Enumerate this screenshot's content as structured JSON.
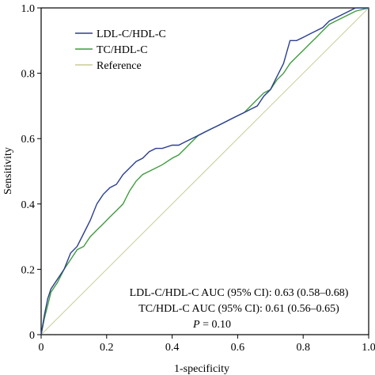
{
  "chart_data": {
    "type": "line",
    "title": "",
    "xlabel": "1-specificity",
    "ylabel": "Sensitivity",
    "xlim": [
      0,
      1
    ],
    "ylim": [
      0,
      1
    ],
    "grid": false,
    "legend_position": "top-left",
    "x_ticks": [
      "0",
      "0.2",
      "0.4",
      "0.6",
      "0.8",
      "1.0"
    ],
    "y_ticks": [
      "0",
      "0.2",
      "0.4",
      "0.6",
      "0.8",
      "1.0"
    ],
    "series": [
      {
        "name": "LDL-C/HDL-C",
        "color": "#2b3f8f",
        "points": [
          [
            0,
            0
          ],
          [
            0.01,
            0.06
          ],
          [
            0.02,
            0.11
          ],
          [
            0.03,
            0.14
          ],
          [
            0.05,
            0.17
          ],
          [
            0.07,
            0.2
          ],
          [
            0.09,
            0.25
          ],
          [
            0.11,
            0.27
          ],
          [
            0.13,
            0.31
          ],
          [
            0.15,
            0.35
          ],
          [
            0.17,
            0.4
          ],
          [
            0.19,
            0.43
          ],
          [
            0.21,
            0.45
          ],
          [
            0.23,
            0.46
          ],
          [
            0.25,
            0.49
          ],
          [
            0.27,
            0.51
          ],
          [
            0.29,
            0.53
          ],
          [
            0.31,
            0.54
          ],
          [
            0.33,
            0.56
          ],
          [
            0.35,
            0.57
          ],
          [
            0.37,
            0.57
          ],
          [
            0.4,
            0.58
          ],
          [
            0.42,
            0.58
          ],
          [
            0.44,
            0.59
          ],
          [
            0.46,
            0.6
          ],
          [
            0.48,
            0.61
          ],
          [
            0.5,
            0.62
          ],
          [
            0.52,
            0.63
          ],
          [
            0.54,
            0.64
          ],
          [
            0.56,
            0.65
          ],
          [
            0.58,
            0.66
          ],
          [
            0.6,
            0.67
          ],
          [
            0.62,
            0.68
          ],
          [
            0.64,
            0.69
          ],
          [
            0.66,
            0.7
          ],
          [
            0.68,
            0.73
          ],
          [
            0.7,
            0.75
          ],
          [
            0.72,
            0.79
          ],
          [
            0.74,
            0.83
          ],
          [
            0.76,
            0.9
          ],
          [
            0.78,
            0.9
          ],
          [
            0.8,
            0.91
          ],
          [
            0.82,
            0.92
          ],
          [
            0.84,
            0.93
          ],
          [
            0.86,
            0.94
          ],
          [
            0.88,
            0.96
          ],
          [
            0.9,
            0.97
          ],
          [
            0.92,
            0.98
          ],
          [
            0.94,
            0.99
          ],
          [
            0.96,
            1.0
          ],
          [
            1.0,
            1.0
          ]
        ]
      },
      {
        "name": "TC/HDL-C",
        "color": "#3f9c3f",
        "points": [
          [
            0,
            0
          ],
          [
            0.01,
            0.05
          ],
          [
            0.02,
            0.09
          ],
          [
            0.03,
            0.13
          ],
          [
            0.05,
            0.16
          ],
          [
            0.07,
            0.2
          ],
          [
            0.09,
            0.23
          ],
          [
            0.11,
            0.26
          ],
          [
            0.13,
            0.27
          ],
          [
            0.15,
            0.3
          ],
          [
            0.17,
            0.32
          ],
          [
            0.19,
            0.34
          ],
          [
            0.21,
            0.36
          ],
          [
            0.23,
            0.38
          ],
          [
            0.25,
            0.4
          ],
          [
            0.27,
            0.44
          ],
          [
            0.29,
            0.47
          ],
          [
            0.31,
            0.49
          ],
          [
            0.33,
            0.5
          ],
          [
            0.35,
            0.51
          ],
          [
            0.37,
            0.52
          ],
          [
            0.4,
            0.54
          ],
          [
            0.42,
            0.55
          ],
          [
            0.44,
            0.57
          ],
          [
            0.46,
            0.59
          ],
          [
            0.48,
            0.61
          ],
          [
            0.5,
            0.62
          ],
          [
            0.52,
            0.63
          ],
          [
            0.54,
            0.64
          ],
          [
            0.56,
            0.65
          ],
          [
            0.58,
            0.66
          ],
          [
            0.6,
            0.67
          ],
          [
            0.62,
            0.68
          ],
          [
            0.64,
            0.7
          ],
          [
            0.66,
            0.72
          ],
          [
            0.68,
            0.74
          ],
          [
            0.7,
            0.75
          ],
          [
            0.72,
            0.78
          ],
          [
            0.74,
            0.8
          ],
          [
            0.76,
            0.83
          ],
          [
            0.78,
            0.85
          ],
          [
            0.8,
            0.87
          ],
          [
            0.82,
            0.89
          ],
          [
            0.84,
            0.91
          ],
          [
            0.86,
            0.93
          ],
          [
            0.88,
            0.95
          ],
          [
            0.9,
            0.96
          ],
          [
            0.92,
            0.97
          ],
          [
            0.94,
            0.98
          ],
          [
            0.96,
            0.99
          ],
          [
            1.0,
            1.0
          ]
        ]
      },
      {
        "name": "Reference",
        "color": "#c8cc9a",
        "points": [
          [
            0,
            0
          ],
          [
            1,
            1
          ]
        ]
      }
    ],
    "annotations": [
      "LDL-C/HDL-C AUC (95% CI): 0.63 (0.58–0.68)",
      "TC/HDL-C AUC (95% CI): 0.61 (0.56–0.65)"
    ],
    "p_value": {
      "label": "P",
      "text": " = 0.10"
    }
  }
}
